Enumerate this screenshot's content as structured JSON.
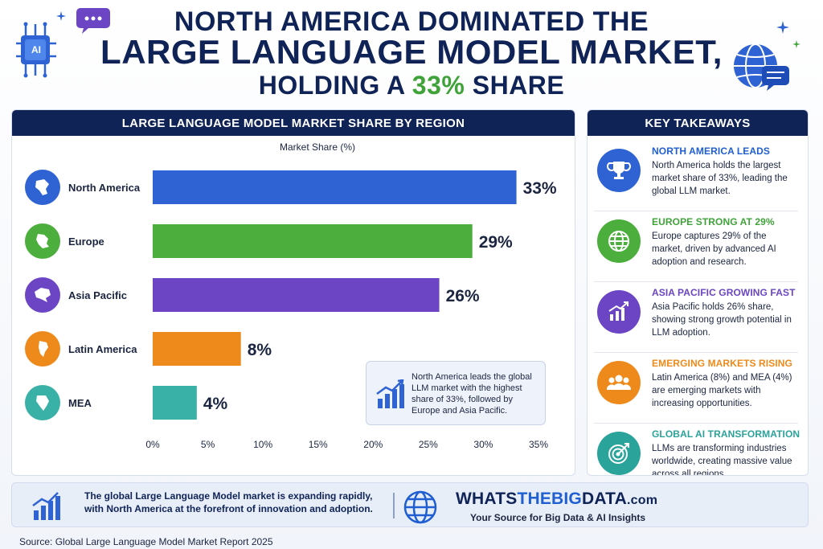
{
  "header": {
    "line1": "NORTH AMERICA DOMINATED THE",
    "line2": "LARGE LANGUAGE MODEL MARKET,",
    "line3_prefix": "HOLDING A ",
    "line3_accent": "33%",
    "line3_suffix": " SHARE",
    "ai_badge": "AI"
  },
  "colors": {
    "navy": "#0f2356",
    "accent_green": "#3fa33a",
    "north_america": "#2f63d3",
    "europe": "#4cae3c",
    "asia_pacific": "#6b45c4",
    "latin_america": "#ee8a1b",
    "mea": "#3ab1a7"
  },
  "chart_panel": {
    "title": "LARGE LANGUAGE MODEL MARKET SHARE BY REGION"
  },
  "chart_data": {
    "type": "bar",
    "orientation": "horizontal",
    "title": "LARGE LANGUAGE MODEL MARKET SHARE BY REGION",
    "xlabel": "Market Share (%)",
    "categories": [
      "North America",
      "Europe",
      "Asia Pacific",
      "Latin America",
      "MEA"
    ],
    "values": [
      33,
      29,
      26,
      8,
      4
    ],
    "value_labels": [
      "33%",
      "29%",
      "26%",
      "8%",
      "4%"
    ],
    "bar_colors": [
      "#2f63d3",
      "#4cae3c",
      "#6b45c4",
      "#ee8a1b",
      "#3ab1a7"
    ],
    "icon_colors": [
      "#2f63d3",
      "#4cae3c",
      "#6b45c4",
      "#ee8a1b",
      "#3ab1a7"
    ],
    "icons": [
      "north-america-map-icon",
      "europe-map-icon",
      "asia-map-icon",
      "south-america-map-icon",
      "africa-map-icon"
    ],
    "xlim": [
      0,
      35
    ],
    "xticks": [
      "0%",
      "5%",
      "10%",
      "15%",
      "20%",
      "25%",
      "30%",
      "35%"
    ],
    "grid": false
  },
  "callout": {
    "text": "North America leads the global LLM market with the highest share of 33%, followed by Europe and Asia Pacific.",
    "icon": "bar-chart-trend-icon"
  },
  "takeaways": {
    "title": "KEY TAKEAWAYS",
    "items": [
      {
        "title": "NORTH AMERICA LEADS",
        "body": "North America holds the largest market share of 33%, leading the global LLM market.",
        "color": "#1f5fd1",
        "icon": "trophy-icon"
      },
      {
        "title": "EUROPE STRONG AT 29%",
        "body": "Europe captures 29% of the market, driven by advanced AI adoption and research.",
        "color": "#3fa33a",
        "icon": "globe-icon"
      },
      {
        "title": "ASIA PACIFIC GROWING FAST",
        "body": "Asia Pacific holds 26% share, showing strong growth potential in LLM adoption.",
        "color": "#6b45c4",
        "icon": "growth-chart-icon"
      },
      {
        "title": "EMERGING MARKETS RISING",
        "body": "Latin America (8%) and MEA (4%) are emerging markets with increasing opportunities.",
        "color": "#ee8a1b",
        "icon": "people-group-icon"
      },
      {
        "title": "GLOBAL AI TRANSFORMATION",
        "body": "LLMs are transforming industries worldwide, creating massive value across all regions.",
        "color": "#2aa39a",
        "icon": "target-icon"
      }
    ]
  },
  "footer": {
    "text": "The global Large Language Model market is expanding rapidly, with North America at the forefront of innovation and adoption.",
    "brand_a": "WHATS",
    "brand_b": "THEBIG",
    "brand_c": "DATA",
    "brand_d": ".com",
    "tagline": "Your Source for Big Data & AI Insights"
  },
  "source": "Source: Global Large Language Model Market Report 2025"
}
